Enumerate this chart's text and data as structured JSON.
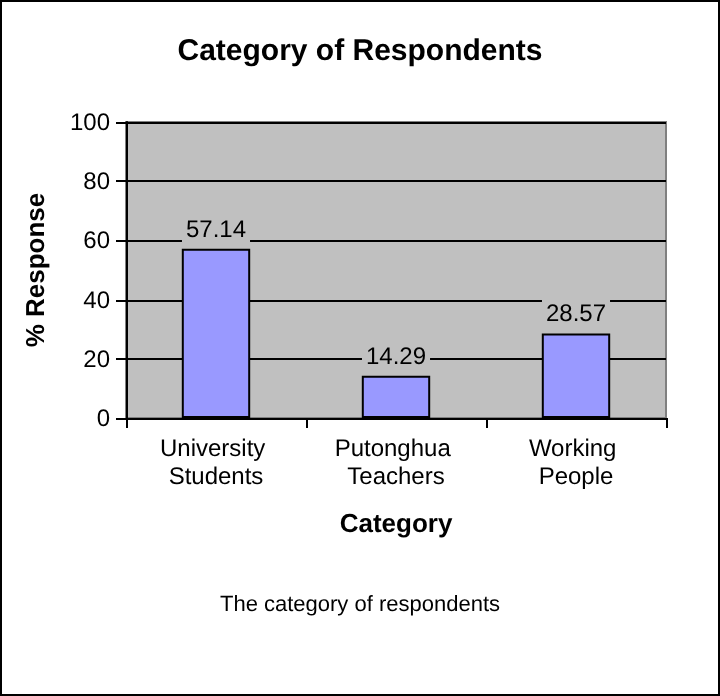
{
  "chart_data": {
    "type": "bar",
    "title": "Category of Respondents",
    "xlabel": "Category",
    "ylabel": "% Response",
    "categories": [
      "University Students",
      "Putonghua Teachers",
      "Working People"
    ],
    "values": [
      57.14,
      14.29,
      28.57
    ],
    "color": "#9999ff",
    "data_labels": true,
    "ylim": [
      0,
      100
    ],
    "yticks": [
      0,
      20,
      40,
      60,
      80,
      100
    ],
    "grid": "y",
    "annotations": [
      "The category of respondents"
    ]
  }
}
